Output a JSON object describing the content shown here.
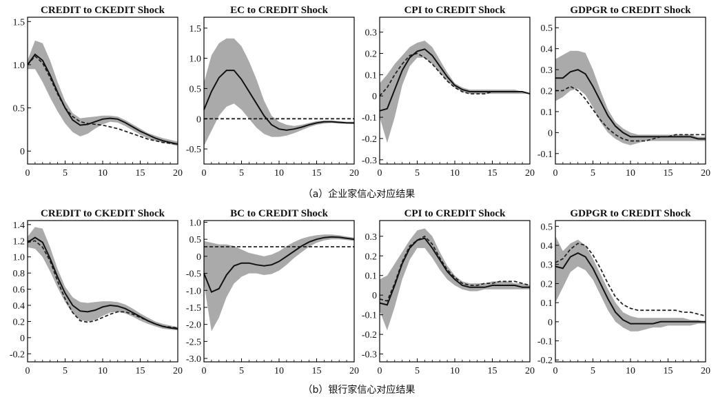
{
  "figure": {
    "caption_a": "（a）企业家信心对应结果",
    "caption_b": "（b）银行家信心对应结果"
  },
  "chart_data": [
    {
      "type": "line",
      "row": "a",
      "title": "CREDIT to CKEDIT Shock",
      "xlim": [
        0,
        20
      ],
      "ylim": [
        -0.15,
        1.55
      ],
      "xticks": [
        0,
        5,
        10,
        15,
        20
      ],
      "yticks": [
        {
          "v": 0,
          "label": "0"
        },
        {
          "v": 0.5,
          "label": "0.5"
        },
        {
          "v": 1.0,
          "label": "1.0"
        },
        {
          "v": 1.5,
          "label": "1.5"
        }
      ],
      "x": [
        0,
        1,
        2,
        3,
        4,
        5,
        6,
        7,
        8,
        9,
        10,
        11,
        12,
        13,
        14,
        15,
        16,
        17,
        18,
        19,
        20
      ],
      "solid": [
        1.0,
        1.12,
        1.05,
        0.88,
        0.68,
        0.5,
        0.36,
        0.3,
        0.31,
        0.34,
        0.37,
        0.38,
        0.37,
        0.33,
        0.28,
        0.23,
        0.19,
        0.15,
        0.12,
        0.1,
        0.08
      ],
      "dashed": [
        1.0,
        1.1,
        1.02,
        0.85,
        0.66,
        0.5,
        0.4,
        0.34,
        0.32,
        0.31,
        0.3,
        0.28,
        0.26,
        0.23,
        0.2,
        0.17,
        0.14,
        0.12,
        0.1,
        0.09,
        0.08
      ],
      "band_upper": [
        1.05,
        1.28,
        1.25,
        1.05,
        0.8,
        0.58,
        0.44,
        0.38,
        0.39,
        0.4,
        0.41,
        0.41,
        0.4,
        0.36,
        0.31,
        0.26,
        0.21,
        0.18,
        0.15,
        0.13,
        0.11
      ],
      "band_lower": [
        0.95,
        0.95,
        0.8,
        0.62,
        0.46,
        0.32,
        0.22,
        0.17,
        0.2,
        0.26,
        0.31,
        0.34,
        0.33,
        0.29,
        0.24,
        0.19,
        0.15,
        0.12,
        0.1,
        0.08,
        0.06
      ]
    },
    {
      "type": "line",
      "row": "a",
      "title": "EC to CREDIT Shock",
      "xlim": [
        0,
        20
      ],
      "ylim": [
        -0.75,
        1.68
      ],
      "xticks": [
        0,
        5,
        10,
        15,
        20
      ],
      "yticks": [
        {
          "v": -0.5,
          "label": "-0.5"
        },
        {
          "v": 0,
          "label": "0"
        },
        {
          "v": 0.5,
          "label": "0.5"
        },
        {
          "v": 1.0,
          "label": "1.0"
        },
        {
          "v": 1.5,
          "label": "1.5"
        }
      ],
      "x": [
        0,
        1,
        2,
        3,
        4,
        5,
        6,
        7,
        8,
        9,
        10,
        11,
        12,
        13,
        14,
        15,
        16,
        17,
        18,
        19,
        20
      ],
      "solid": [
        0.15,
        0.45,
        0.68,
        0.8,
        0.8,
        0.65,
        0.45,
        0.25,
        0.05,
        -0.1,
        -0.17,
        -0.19,
        -0.17,
        -0.14,
        -0.1,
        -0.07,
        -0.05,
        -0.05,
        -0.06,
        -0.07,
        -0.07
      ],
      "dashed": [
        0,
        0,
        0,
        0,
        0,
        0,
        0,
        0,
        0,
        0,
        0,
        0,
        0,
        0,
        0,
        0,
        0,
        0,
        0,
        0,
        0
      ],
      "band_upper": [
        0.6,
        1.05,
        1.25,
        1.33,
        1.33,
        1.2,
        0.95,
        0.65,
        0.3,
        0.05,
        -0.05,
        -0.1,
        -0.12,
        -0.1,
        -0.07,
        -0.04,
        -0.03,
        -0.03,
        -0.04,
        -0.05,
        -0.05
      ],
      "band_lower": [
        -0.45,
        -0.2,
        0.05,
        0.2,
        0.25,
        0.15,
        0.0,
        -0.15,
        -0.25,
        -0.3,
        -0.3,
        -0.28,
        -0.24,
        -0.19,
        -0.14,
        -0.1,
        -0.08,
        -0.07,
        -0.08,
        -0.08,
        -0.09
      ]
    },
    {
      "type": "line",
      "row": "a",
      "title": "CPI to CREDIT Shock",
      "xlim": [
        0,
        20
      ],
      "ylim": [
        -0.32,
        0.37
      ],
      "xticks": [
        0,
        5,
        10,
        15,
        20
      ],
      "yticks": [
        {
          "v": -0.3,
          "label": "-0.3"
        },
        {
          "v": -0.2,
          "label": "-0.2"
        },
        {
          "v": -0.1,
          "label": "-0.1"
        },
        {
          "v": 0,
          "label": "0"
        },
        {
          "v": 0.1,
          "label": "0.1"
        },
        {
          "v": 0.2,
          "label": "0.2"
        },
        {
          "v": 0.3,
          "label": "0.3"
        }
      ],
      "x": [
        0,
        1,
        2,
        3,
        4,
        5,
        6,
        7,
        8,
        9,
        10,
        11,
        12,
        13,
        14,
        15,
        16,
        17,
        18,
        19,
        20
      ],
      "solid": [
        -0.07,
        -0.06,
        0.03,
        0.12,
        0.18,
        0.21,
        0.22,
        0.19,
        0.14,
        0.09,
        0.05,
        0.03,
        0.02,
        0.02,
        0.02,
        0.02,
        0.02,
        0.02,
        0.02,
        0.02,
        0.01
      ],
      "dashed": [
        0.0,
        0.04,
        0.1,
        0.15,
        0.19,
        0.2,
        0.18,
        0.15,
        0.11,
        0.07,
        0.04,
        0.02,
        0.01,
        0.01,
        0.01,
        0.02,
        0.02,
        0.02,
        0.02,
        0.02,
        0.01
      ],
      "band_upper": [
        0.06,
        0.1,
        0.15,
        0.19,
        0.23,
        0.25,
        0.26,
        0.23,
        0.17,
        0.11,
        0.06,
        0.04,
        0.03,
        0.03,
        0.03,
        0.03,
        0.03,
        0.03,
        0.03,
        0.02,
        0.01
      ],
      "band_lower": [
        -0.1,
        -0.22,
        -0.1,
        0.05,
        0.14,
        0.18,
        0.18,
        0.15,
        0.11,
        0.07,
        0.04,
        0.02,
        0.01,
        0.01,
        0.01,
        0.01,
        0.01,
        0.01,
        0.01,
        0.01,
        0.01
      ]
    },
    {
      "type": "line",
      "row": "a",
      "title": "GDPGR to CREDIT Shock",
      "xlim": [
        0,
        20
      ],
      "ylim": [
        -0.15,
        0.55
      ],
      "xticks": [
        0,
        5,
        10,
        15,
        20
      ],
      "yticks": [
        {
          "v": -0.1,
          "label": "-0.1"
        },
        {
          "v": 0,
          "label": "0"
        },
        {
          "v": 0.1,
          "label": "0.1"
        },
        {
          "v": 0.2,
          "label": "0.2"
        },
        {
          "v": 0.3,
          "label": "0.3"
        },
        {
          "v": 0.4,
          "label": "0.4"
        },
        {
          "v": 0.5,
          "label": "0.5"
        }
      ],
      "x": [
        0,
        1,
        2,
        3,
        4,
        5,
        6,
        7,
        8,
        9,
        10,
        11,
        12,
        13,
        14,
        15,
        16,
        17,
        18,
        19,
        20
      ],
      "solid": [
        0.26,
        0.26,
        0.29,
        0.3,
        0.28,
        0.22,
        0.15,
        0.08,
        0.03,
        0.0,
        -0.02,
        -0.02,
        -0.02,
        -0.02,
        -0.02,
        -0.02,
        -0.02,
        -0.02,
        -0.02,
        -0.03,
        -0.03
      ],
      "dashed": [
        0.2,
        0.2,
        0.22,
        0.2,
        0.16,
        0.11,
        0.06,
        0.02,
        -0.01,
        -0.03,
        -0.04,
        -0.04,
        -0.04,
        -0.03,
        -0.02,
        -0.02,
        -0.01,
        -0.01,
        -0.01,
        -0.01,
        -0.01
      ],
      "band_upper": [
        0.35,
        0.37,
        0.39,
        0.39,
        0.38,
        0.3,
        0.2,
        0.11,
        0.05,
        0.02,
        0.0,
        -0.01,
        -0.01,
        -0.01,
        -0.01,
        -0.01,
        -0.01,
        -0.01,
        -0.01,
        -0.02,
        -0.02
      ],
      "band_lower": [
        0.15,
        0.17,
        0.2,
        0.21,
        0.18,
        0.12,
        0.05,
        0.0,
        -0.03,
        -0.05,
        -0.06,
        -0.05,
        -0.04,
        -0.04,
        -0.04,
        -0.04,
        -0.04,
        -0.04,
        -0.04,
        -0.04,
        -0.04
      ]
    },
    {
      "type": "line",
      "row": "b",
      "title": "CREDIT to CKEDIT Shock",
      "xlim": [
        0,
        20
      ],
      "ylim": [
        -0.3,
        1.45
      ],
      "xticks": [
        0,
        5,
        10,
        15,
        20
      ],
      "yticks": [
        {
          "v": -0.2,
          "label": "-0.2"
        },
        {
          "v": 0,
          "label": "0"
        },
        {
          "v": 0.2,
          "label": "0.2"
        },
        {
          "v": 0.4,
          "label": "0.4"
        },
        {
          "v": 0.6,
          "label": "0.6"
        },
        {
          "v": 0.8,
          "label": "0.8"
        },
        {
          "v": 1.0,
          "label": "1.0"
        },
        {
          "v": 1.2,
          "label": "1.2"
        },
        {
          "v": 1.4,
          "label": "1.4"
        }
      ],
      "x": [
        0,
        1,
        2,
        3,
        4,
        5,
        6,
        7,
        8,
        9,
        10,
        11,
        12,
        13,
        14,
        15,
        16,
        17,
        18,
        19,
        20
      ],
      "solid": [
        1.18,
        1.24,
        1.18,
        0.98,
        0.75,
        0.55,
        0.4,
        0.33,
        0.32,
        0.34,
        0.38,
        0.4,
        0.39,
        0.36,
        0.31,
        0.26,
        0.21,
        0.17,
        0.14,
        0.12,
        0.11
      ],
      "dashed": [
        1.18,
        1.2,
        1.12,
        0.95,
        0.7,
        0.48,
        0.31,
        0.21,
        0.19,
        0.21,
        0.25,
        0.29,
        0.32,
        0.32,
        0.29,
        0.25,
        0.21,
        0.17,
        0.14,
        0.13,
        0.12
      ],
      "band_upper": [
        1.25,
        1.37,
        1.35,
        1.12,
        0.85,
        0.63,
        0.5,
        0.44,
        0.43,
        0.44,
        0.45,
        0.45,
        0.44,
        0.41,
        0.36,
        0.3,
        0.25,
        0.2,
        0.17,
        0.15,
        0.13
      ],
      "band_lower": [
        1.12,
        1.1,
        1.0,
        0.82,
        0.62,
        0.44,
        0.3,
        0.22,
        0.2,
        0.22,
        0.27,
        0.31,
        0.32,
        0.3,
        0.26,
        0.21,
        0.17,
        0.14,
        0.11,
        0.1,
        0.09
      ]
    },
    {
      "type": "line",
      "row": "b",
      "title": "BC to CREDIT Shock",
      "xlim": [
        0,
        20
      ],
      "ylim": [
        -3.1,
        1.05
      ],
      "xticks": [
        0,
        5,
        10,
        15,
        20
      ],
      "yticks": [
        {
          "v": -3.0,
          "label": "-3.0"
        },
        {
          "v": -2.5,
          "label": "-2.5"
        },
        {
          "v": -2.0,
          "label": "-2.0"
        },
        {
          "v": -1.5,
          "label": "-1.5"
        },
        {
          "v": -1.0,
          "label": "-1.0"
        },
        {
          "v": -0.5,
          "label": "-0.5"
        },
        {
          "v": 0,
          "label": "0"
        },
        {
          "v": 0.5,
          "label": "0.5"
        },
        {
          "v": 1.0,
          "label": "1.0"
        }
      ],
      "x": [
        0,
        1,
        2,
        3,
        4,
        5,
        6,
        7,
        8,
        9,
        10,
        11,
        12,
        13,
        14,
        15,
        16,
        17,
        18,
        19,
        20
      ],
      "solid": [
        -0.5,
        -1.05,
        -0.95,
        -0.55,
        -0.28,
        -0.2,
        -0.2,
        -0.25,
        -0.28,
        -0.25,
        -0.15,
        0.0,
        0.15,
        0.3,
        0.42,
        0.5,
        0.55,
        0.57,
        0.56,
        0.53,
        0.5
      ],
      "dashed": [
        0.28,
        0.28,
        0.28,
        0.28,
        0.28,
        0.28,
        0.28,
        0.28,
        0.28,
        0.28,
        0.28,
        0.28,
        0.28,
        0.28,
        0.28,
        0.28,
        0.28,
        0.28,
        0.28,
        0.28,
        0.28
      ],
      "band_upper": [
        0.45,
        0.4,
        0.35,
        0.35,
        0.3,
        0.2,
        0.1,
        0.05,
        0.0,
        0.05,
        0.15,
        0.3,
        0.42,
        0.52,
        0.58,
        0.62,
        0.64,
        0.64,
        0.62,
        0.58,
        0.55
      ],
      "band_lower": [
        -0.8,
        -2.2,
        -1.8,
        -1.2,
        -0.8,
        -0.6,
        -0.5,
        -0.5,
        -0.55,
        -0.52,
        -0.42,
        -0.25,
        -0.05,
        0.12,
        0.28,
        0.4,
        0.47,
        0.5,
        0.5,
        0.48,
        0.45
      ]
    },
    {
      "type": "line",
      "row": "b",
      "title": "CPI to CREDIT Shock",
      "xlim": [
        0,
        20
      ],
      "ylim": [
        -0.34,
        0.38
      ],
      "xticks": [
        0,
        5,
        10,
        15,
        20
      ],
      "yticks": [
        {
          "v": -0.3,
          "label": "-0.3"
        },
        {
          "v": -0.2,
          "label": "-0.2"
        },
        {
          "v": -0.1,
          "label": "-0.1"
        },
        {
          "v": 0,
          "label": "0"
        },
        {
          "v": 0.1,
          "label": "0.1"
        },
        {
          "v": 0.2,
          "label": "0.2"
        },
        {
          "v": 0.3,
          "label": "0.3"
        }
      ],
      "x": [
        0,
        1,
        2,
        3,
        4,
        5,
        6,
        7,
        8,
        9,
        10,
        11,
        12,
        13,
        14,
        15,
        16,
        17,
        18,
        19,
        20
      ],
      "solid": [
        -0.04,
        -0.05,
        0.05,
        0.16,
        0.24,
        0.28,
        0.29,
        0.24,
        0.18,
        0.12,
        0.08,
        0.05,
        0.04,
        0.04,
        0.04,
        0.05,
        0.05,
        0.05,
        0.05,
        0.04,
        0.04
      ],
      "dashed": [
        -0.02,
        -0.03,
        0.06,
        0.17,
        0.25,
        0.28,
        0.3,
        0.26,
        0.19,
        0.13,
        0.09,
        0.06,
        0.05,
        0.05,
        0.06,
        0.06,
        0.07,
        0.07,
        0.07,
        0.06,
        0.05
      ],
      "band_upper": [
        0.08,
        0.1,
        0.16,
        0.22,
        0.28,
        0.33,
        0.34,
        0.3,
        0.22,
        0.15,
        0.1,
        0.07,
        0.06,
        0.06,
        0.06,
        0.07,
        0.07,
        0.07,
        0.06,
        0.06,
        0.05
      ],
      "band_lower": [
        -0.08,
        -0.18,
        -0.06,
        0.08,
        0.18,
        0.24,
        0.24,
        0.19,
        0.13,
        0.08,
        0.05,
        0.03,
        0.02,
        0.02,
        0.03,
        0.03,
        0.03,
        0.03,
        0.03,
        0.03,
        0.03
      ]
    },
    {
      "type": "line",
      "row": "b",
      "title": "GDPGR to CREDIT Shock",
      "xlim": [
        0,
        20
      ],
      "ylim": [
        -0.21,
        0.53
      ],
      "xticks": [
        0,
        5,
        10,
        15,
        20
      ],
      "yticks": [
        {
          "v": -0.2,
          "label": "-0.2"
        },
        {
          "v": -0.1,
          "label": "-0.1"
        },
        {
          "v": 0,
          "label": "0"
        },
        {
          "v": 0.1,
          "label": "0.1"
        },
        {
          "v": 0.2,
          "label": "0.2"
        },
        {
          "v": 0.3,
          "label": "0.3"
        },
        {
          "v": 0.4,
          "label": "0.4"
        },
        {
          "v": 0.5,
          "label": "0.5"
        }
      ],
      "x": [
        0,
        1,
        2,
        3,
        4,
        5,
        6,
        7,
        8,
        9,
        10,
        11,
        12,
        13,
        14,
        15,
        16,
        17,
        18,
        19,
        20
      ],
      "solid": [
        0.29,
        0.28,
        0.34,
        0.36,
        0.34,
        0.28,
        0.2,
        0.12,
        0.05,
        0.01,
        -0.01,
        -0.01,
        -0.01,
        -0.01,
        0.0,
        0.0,
        0.0,
        0.0,
        0.0,
        0.0,
        0.0
      ],
      "dashed": [
        0.31,
        0.33,
        0.38,
        0.41,
        0.4,
        0.35,
        0.28,
        0.2,
        0.13,
        0.09,
        0.07,
        0.06,
        0.06,
        0.06,
        0.06,
        0.06,
        0.06,
        0.05,
        0.05,
        0.04,
        0.03
      ],
      "band_upper": [
        0.45,
        0.37,
        0.41,
        0.43,
        0.4,
        0.33,
        0.25,
        0.17,
        0.1,
        0.05,
        0.03,
        0.02,
        0.02,
        0.02,
        0.02,
        0.02,
        0.02,
        0.02,
        0.01,
        0.01,
        0.0
      ],
      "band_lower": [
        0.1,
        0.18,
        0.26,
        0.29,
        0.27,
        0.22,
        0.14,
        0.06,
        0.0,
        -0.03,
        -0.05,
        -0.05,
        -0.04,
        -0.03,
        -0.03,
        -0.02,
        -0.02,
        -0.02,
        -0.02,
        -0.01,
        -0.01
      ]
    }
  ]
}
